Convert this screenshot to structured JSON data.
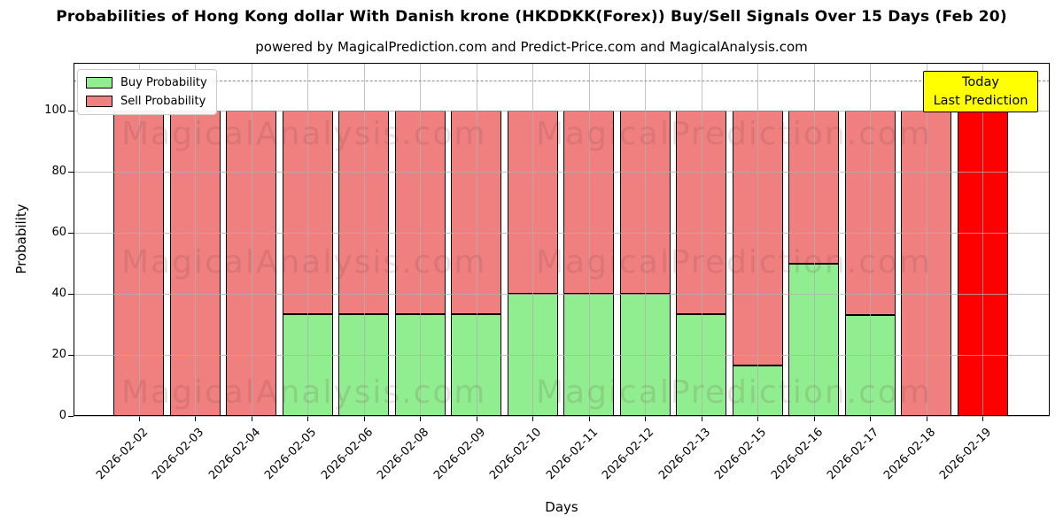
{
  "title": "Probabilities of Hong Kong dollar With Danish krone (HKDDKK(Forex)) Buy/Sell Signals Over 15 Days (Feb 20)",
  "subtitle": "powered by MagicalPrediction.com and Predict-Price.com and MagicalAnalysis.com",
  "legend": {
    "buy_label": "Buy Probability",
    "sell_label": "Sell Probability"
  },
  "annotation": {
    "line1": "Today",
    "line2": "Last Prediction",
    "bg_color": "#FFFF00"
  },
  "watermarks": {
    "left": "MagicalAnalysis.com",
    "right": "MagicalPrediction.com"
  },
  "chart_data": {
    "type": "bar",
    "stacked": true,
    "title": "Probabilities of Hong Kong dollar With Danish krone (HKDDKK(Forex)) Buy/Sell Signals Over 15 Days (Feb 20)",
    "xlabel": "Days",
    "ylabel": "Probability",
    "categories": [
      "2026-02-02",
      "2026-02-03",
      "2026-02-04",
      "2026-02-05",
      "2026-02-06",
      "2026-02-08",
      "2026-02-09",
      "2026-02-10",
      "2026-02-11",
      "2026-02-12",
      "2026-02-13",
      "2026-02-15",
      "2026-02-16",
      "2026-02-17",
      "2026-02-18",
      "2026-02-19"
    ],
    "series": [
      {
        "name": "Buy Probability",
        "color": "#90EE90",
        "values": [
          0,
          0,
          0,
          33.33,
          33.33,
          33.33,
          33.33,
          40,
          40,
          40,
          33.33,
          16.67,
          50,
          33,
          0,
          0
        ]
      },
      {
        "name": "Sell Probability",
        "color": "#F08080",
        "values": [
          100,
          100,
          100,
          66.67,
          66.67,
          66.67,
          66.67,
          60,
          60,
          60,
          66.67,
          83.33,
          50,
          67,
          100,
          100
        ]
      }
    ],
    "today_index": 15,
    "today_sell_color": "#FF0000",
    "yticks": [
      0,
      20,
      40,
      60,
      80,
      100
    ],
    "ylim": [
      0,
      115.65
    ],
    "dashed_line_y": 110,
    "grid": true,
    "legend_position": "upper-left"
  }
}
